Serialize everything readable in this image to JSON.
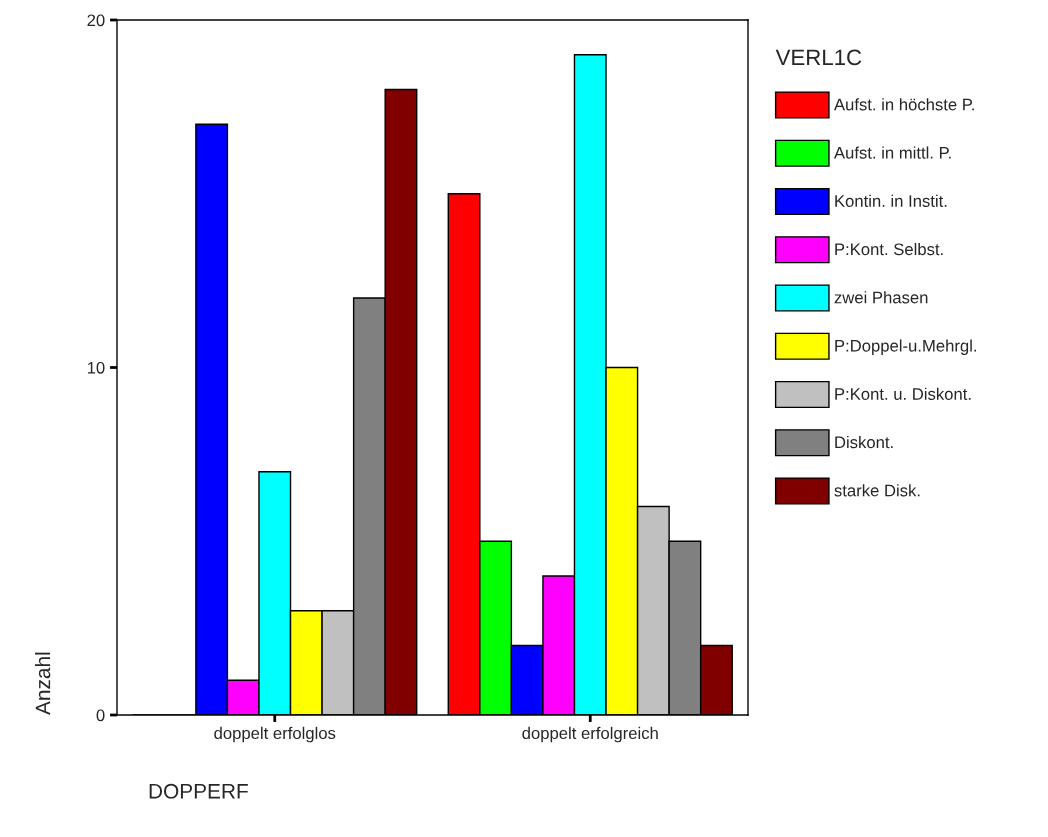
{
  "chart_data": {
    "type": "bar",
    "categories": [
      "doppelt erfolglos",
      "doppelt erfolgreich"
    ],
    "xlabel": "DOPPERF",
    "ylabel": "Anzahl",
    "legend_title": "VERL1C",
    "ylim": [
      0,
      20
    ],
    "yticks": [
      0,
      10,
      20
    ],
    "grid": false,
    "legend": "right",
    "series": [
      {
        "name": "Aufst. in höchste P.",
        "color": "#ff0000",
        "values": [
          0,
          15
        ]
      },
      {
        "name": "Aufst. in mittl. P.",
        "color": "#00ff00",
        "values": [
          0,
          5
        ]
      },
      {
        "name": "Kontin. in Instit.",
        "color": "#0000ff",
        "values": [
          17,
          2
        ]
      },
      {
        "name": "P:Kont. Selbst.",
        "color": "#ff00ff",
        "values": [
          1,
          4
        ]
      },
      {
        "name": "zwei Phasen",
        "color": "#00ffff",
        "values": [
          7,
          19
        ]
      },
      {
        "name": "P:Doppel-u.Mehrgl.",
        "color": "#ffff00",
        "values": [
          3,
          10
        ]
      },
      {
        "name": "P:Kont. u. Diskont.",
        "color": "#c0c0c0",
        "values": [
          3,
          6
        ]
      },
      {
        "name": "Diskont.",
        "color": "#808080",
        "values": [
          12,
          5
        ]
      },
      {
        "name": "starke Disk.",
        "color": "#800000",
        "values": [
          18,
          2
        ]
      }
    ]
  }
}
